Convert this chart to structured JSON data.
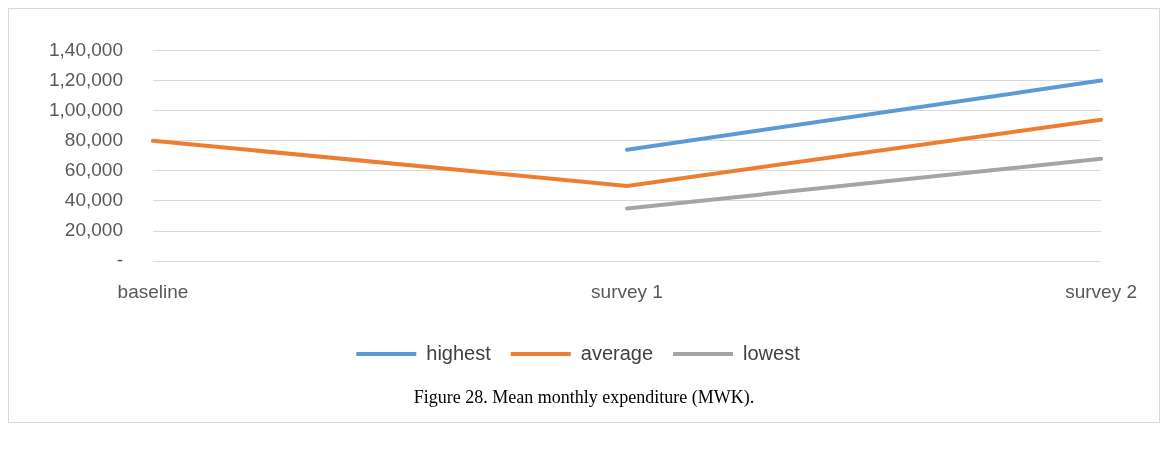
{
  "chart_data": {
    "type": "line",
    "categories": [
      "baseline",
      "survey 1",
      "survey 2"
    ],
    "series": [
      {
        "name": "highest",
        "color": "#5b9bd5",
        "values": [
          null,
          74000,
          120000
        ]
      },
      {
        "name": "average",
        "color": "#ed7d31",
        "values": [
          80000,
          50000,
          94000
        ]
      },
      {
        "name": "lowest",
        "color": "#a5a5a5",
        "values": [
          null,
          35000,
          68000
        ]
      }
    ],
    "ylim": [
      0,
      140000
    ],
    "yticks": [
      {
        "value": 0,
        "label": "-"
      },
      {
        "value": 20000,
        "label": "20,000"
      },
      {
        "value": 40000,
        "label": "40,000"
      },
      {
        "value": 60000,
        "label": "60,000"
      },
      {
        "value": 80000,
        "label": "80,000"
      },
      {
        "value": 100000,
        "label": "1,00,000"
      },
      {
        "value": 120000,
        "label": "1,20,000"
      },
      {
        "value": 140000,
        "label": "1,40,000"
      }
    ],
    "grid": "y",
    "legend": "bottom",
    "marker": "none",
    "line_style": "solid",
    "annotations": [
      "Figure 28. Mean monthly expenditure (MWK)."
    ]
  }
}
